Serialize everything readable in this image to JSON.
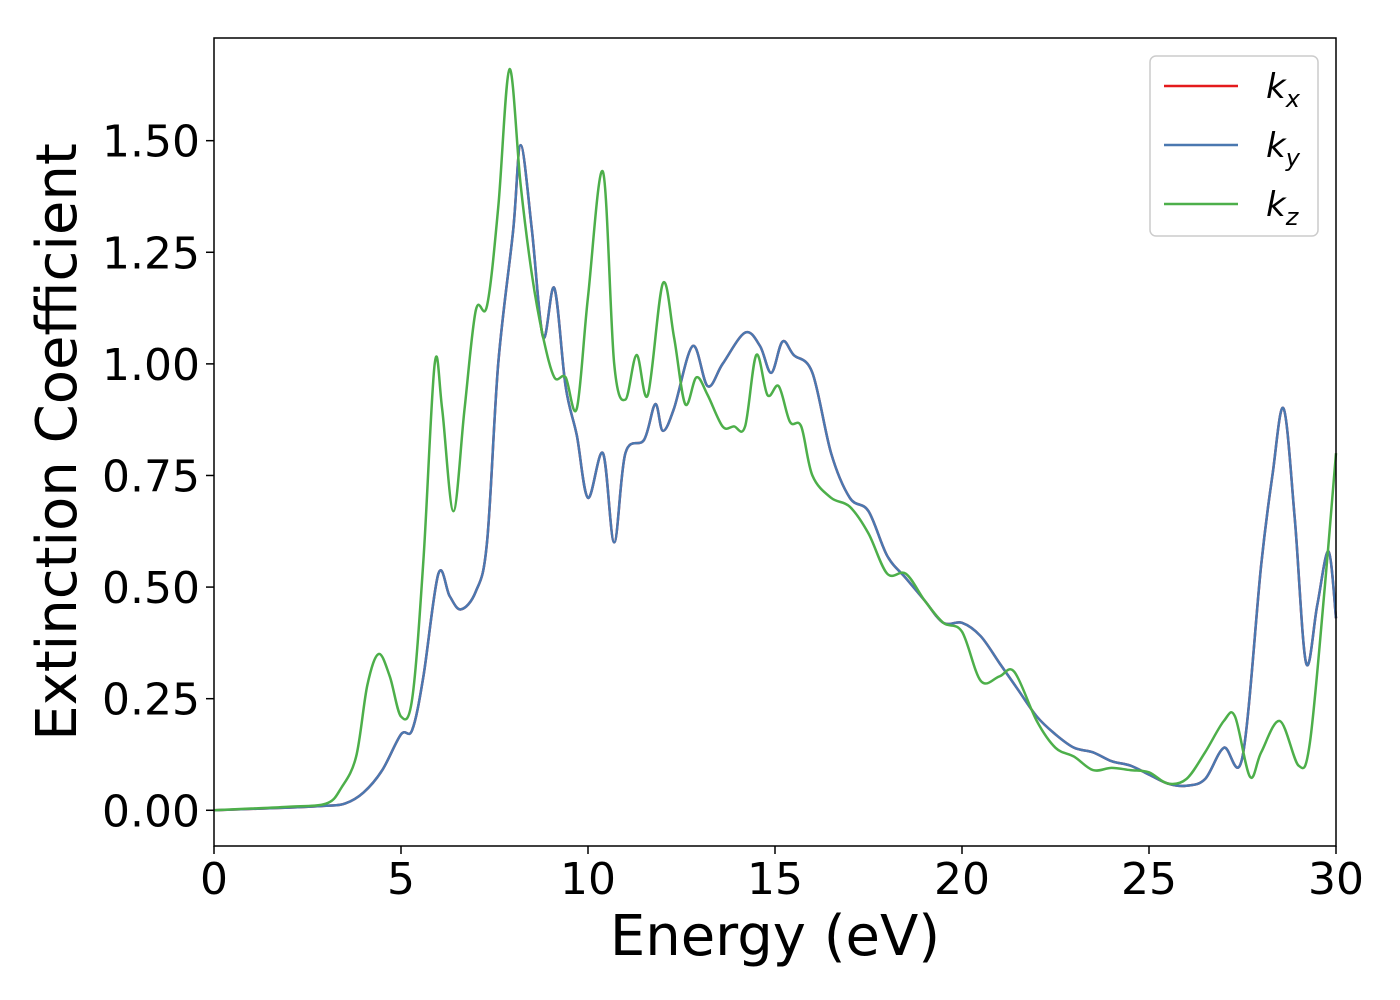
{
  "chart_data": {
    "type": "line",
    "xlabel": "Energy (eV)",
    "ylabel": "Extinction Coefficient",
    "xlim": [
      0,
      30
    ],
    "ylim": [
      -0.08,
      1.73
    ],
    "xticks": [
      0,
      5,
      10,
      15,
      20,
      25,
      30
    ],
    "xtick_labels": [
      "0",
      "5",
      "10",
      "15",
      "20",
      "25",
      "30"
    ],
    "yticks": [
      0.0,
      0.25,
      0.5,
      0.75,
      1.0,
      1.25,
      1.5
    ],
    "ytick_labels": [
      "0.00",
      "0.25",
      "0.50",
      "0.75",
      "1.00",
      "1.25",
      "1.50"
    ],
    "grid": false,
    "legend_position": "top-right",
    "series": [
      {
        "name": "k",
        "subscript": "x",
        "color": "#e41a1c",
        "x": [
          0,
          1,
          2,
          3,
          3.5,
          4,
          4.5,
          5,
          5.3,
          5.6,
          6,
          6.3,
          6.6,
          7,
          7.3,
          7.6,
          8,
          8.2,
          8.5,
          8.8,
          9.1,
          9.4,
          9.7,
          10,
          10.4,
          10.7,
          11,
          11.5,
          11.8,
          12,
          12.3,
          12.8,
          13.2,
          13.6,
          14.2,
          14.6,
          14.9,
          15.2,
          15.5,
          16,
          16.5,
          17,
          17.5,
          18,
          18.5,
          19,
          19.5,
          20,
          20.5,
          21,
          21.5,
          22,
          22.5,
          23,
          23.5,
          24,
          24.5,
          25,
          25.5,
          26,
          26.5,
          27,
          27.5,
          28,
          28.3,
          28.6,
          28.9,
          29.2,
          29.5,
          29.8,
          30
        ],
        "y": [
          0,
          0.003,
          0.006,
          0.01,
          0.015,
          0.04,
          0.09,
          0.17,
          0.18,
          0.3,
          0.53,
          0.48,
          0.45,
          0.49,
          0.6,
          1.0,
          1.3,
          1.49,
          1.3,
          1.06,
          1.17,
          0.95,
          0.84,
          0.7,
          0.8,
          0.6,
          0.8,
          0.83,
          0.91,
          0.85,
          0.9,
          1.04,
          0.95,
          1.0,
          1.07,
          1.04,
          0.98,
          1.05,
          1.02,
          0.98,
          0.8,
          0.7,
          0.67,
          0.57,
          0.52,
          0.47,
          0.42,
          0.42,
          0.39,
          0.33,
          0.27,
          0.21,
          0.17,
          0.14,
          0.13,
          0.11,
          0.1,
          0.08,
          0.06,
          0.055,
          0.07,
          0.14,
          0.12,
          0.55,
          0.75,
          0.9,
          0.65,
          0.33,
          0.46,
          0.58,
          0.43
        ]
      },
      {
        "name": "k",
        "subscript": "y",
        "color": "#4a78b0",
        "x": [
          0,
          1,
          2,
          3,
          3.5,
          4,
          4.5,
          5,
          5.3,
          5.6,
          6,
          6.3,
          6.6,
          7,
          7.3,
          7.6,
          8,
          8.2,
          8.5,
          8.8,
          9.1,
          9.4,
          9.7,
          10,
          10.4,
          10.7,
          11,
          11.5,
          11.8,
          12,
          12.3,
          12.8,
          13.2,
          13.6,
          14.2,
          14.6,
          14.9,
          15.2,
          15.5,
          16,
          16.5,
          17,
          17.5,
          18,
          18.5,
          19,
          19.5,
          20,
          20.5,
          21,
          21.5,
          22,
          22.5,
          23,
          23.5,
          24,
          24.5,
          25,
          25.5,
          26,
          26.5,
          27,
          27.5,
          28,
          28.3,
          28.6,
          28.9,
          29.2,
          29.5,
          29.8,
          30
        ],
        "y": [
          0,
          0.003,
          0.006,
          0.01,
          0.015,
          0.04,
          0.09,
          0.17,
          0.18,
          0.3,
          0.53,
          0.48,
          0.45,
          0.49,
          0.6,
          1.0,
          1.3,
          1.49,
          1.3,
          1.06,
          1.17,
          0.95,
          0.84,
          0.7,
          0.8,
          0.6,
          0.8,
          0.83,
          0.91,
          0.85,
          0.9,
          1.04,
          0.95,
          1.0,
          1.07,
          1.04,
          0.98,
          1.05,
          1.02,
          0.98,
          0.8,
          0.7,
          0.67,
          0.57,
          0.52,
          0.47,
          0.42,
          0.42,
          0.39,
          0.33,
          0.27,
          0.21,
          0.17,
          0.14,
          0.13,
          0.11,
          0.1,
          0.08,
          0.06,
          0.055,
          0.07,
          0.14,
          0.12,
          0.55,
          0.75,
          0.9,
          0.65,
          0.33,
          0.46,
          0.58,
          0.43
        ]
      },
      {
        "name": "k",
        "subscript": "z",
        "color": "#4daf4a",
        "x": [
          0,
          1,
          2,
          3,
          3.4,
          3.8,
          4.1,
          4.4,
          4.7,
          5,
          5.3,
          5.6,
          5.9,
          6.1,
          6.4,
          6.7,
          7,
          7.3,
          7.6,
          7.9,
          8.2,
          8.5,
          8.8,
          9.1,
          9.4,
          9.7,
          10,
          10.4,
          10.7,
          11,
          11.3,
          11.6,
          12,
          12.3,
          12.6,
          12.9,
          13.2,
          13.6,
          13.9,
          14.2,
          14.5,
          14.8,
          15.1,
          15.4,
          15.7,
          16,
          16.5,
          17,
          17.5,
          18,
          18.5,
          19,
          19.5,
          20,
          20.5,
          21,
          21.4,
          22,
          22.5,
          23,
          23.5,
          24,
          24.5,
          25,
          25.5,
          26,
          26.5,
          27,
          27.3,
          27.7,
          28,
          28.5,
          29,
          29.3,
          29.7,
          30
        ],
        "y": [
          0,
          0.004,
          0.008,
          0.015,
          0.05,
          0.12,
          0.28,
          0.35,
          0.3,
          0.21,
          0.25,
          0.56,
          1.0,
          0.9,
          0.67,
          0.9,
          1.12,
          1.13,
          1.35,
          1.66,
          1.4,
          1.2,
          1.06,
          0.97,
          0.97,
          0.9,
          1.15,
          1.43,
          1.0,
          0.92,
          1.02,
          0.93,
          1.18,
          1.06,
          0.91,
          0.97,
          0.93,
          0.86,
          0.86,
          0.86,
          1.02,
          0.93,
          0.95,
          0.87,
          0.86,
          0.75,
          0.7,
          0.68,
          0.62,
          0.53,
          0.53,
          0.47,
          0.42,
          0.4,
          0.29,
          0.3,
          0.31,
          0.2,
          0.14,
          0.12,
          0.09,
          0.095,
          0.09,
          0.085,
          0.06,
          0.07,
          0.13,
          0.2,
          0.21,
          0.075,
          0.13,
          0.2,
          0.1,
          0.15,
          0.5,
          0.8
        ]
      }
    ]
  }
}
